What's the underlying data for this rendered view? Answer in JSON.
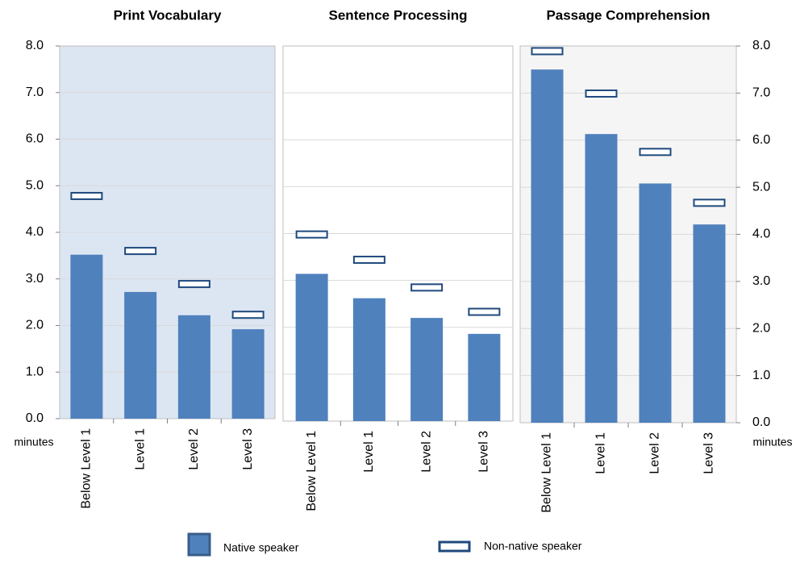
{
  "chart_data": [
    {
      "type": "bar",
      "title": "Print Vocabulary",
      "ylabel": "minutes",
      "categories": [
        "Below Level 1",
        "Level 1",
        "Level 2",
        "Level 3"
      ],
      "background": "#dce6f2",
      "series": [
        {
          "name": "Native speaker",
          "color": "#4f81bd",
          "values": [
            3.52,
            2.72,
            2.22,
            1.92
          ]
        },
        {
          "name": "Non-native speaker",
          "color": "#1f497d",
          "values": [
            4.78,
            3.6,
            2.89,
            2.23
          ]
        }
      ],
      "ylim": [
        0,
        8
      ],
      "yticks": [
        {
          "value": 0,
          "label": "0.0"
        },
        {
          "value": 1,
          "label": "1.0"
        },
        {
          "value": 2,
          "label": "2.0"
        },
        {
          "value": 3,
          "label": "3.0"
        },
        {
          "value": 4,
          "label": "4.0"
        },
        {
          "value": 5,
          "label": "5.0"
        },
        {
          "value": 6,
          "label": "6.0"
        },
        {
          "value": 7,
          "label": "7.0"
        },
        {
          "value": 8,
          "label": "8.0"
        }
      ],
      "grid": true
    },
    {
      "type": "bar",
      "title": "Sentence Processing",
      "categories": [
        "Below Level 1",
        "Level 1",
        "Level 2",
        "Level 3"
      ],
      "background": "#ffffff",
      "series": [
        {
          "color": "#4f81bd",
          "values": [
            3.14,
            2.62,
            2.2,
            1.86
          ]
        },
        {
          "color": "#1f497d",
          "values": [
            3.98,
            3.44,
            2.85,
            2.33
          ]
        }
      ],
      "ylim": [
        0,
        8
      ],
      "yticks": [
        0,
        1,
        2,
        3,
        4,
        5,
        6,
        7,
        8
      ],
      "grid": true
    },
    {
      "type": "bar",
      "title": "Passage Comprehension",
      "ylabel": "minutes",
      "categories": [
        "Below Level 1",
        "Level 1",
        "Level 2",
        "Level 3"
      ],
      "background": "#f5f5f5",
      "series": [
        {
          "color": "#4f81bd",
          "values": [
            7.5,
            6.13,
            5.08,
            4.21
          ]
        },
        {
          "color": "#1f497d",
          "values": [
            7.89,
            6.99,
            5.75,
            4.67
          ]
        }
      ],
      "ylim": [
        0,
        8
      ],
      "yticks": [
        {
          "value": 0,
          "label": "0.0"
        },
        {
          "value": 1,
          "label": "1.0"
        },
        {
          "value": 2,
          "label": "2.0"
        },
        {
          "value": 3,
          "label": "3.0"
        },
        {
          "value": 4,
          "label": "4.0"
        },
        {
          "value": 5,
          "label": "5.0"
        },
        {
          "value": 6,
          "label": "6.0"
        },
        {
          "value": 7,
          "label": "7.0"
        },
        {
          "value": 8,
          "label": "8.0"
        }
      ],
      "grid": true
    }
  ]
}
